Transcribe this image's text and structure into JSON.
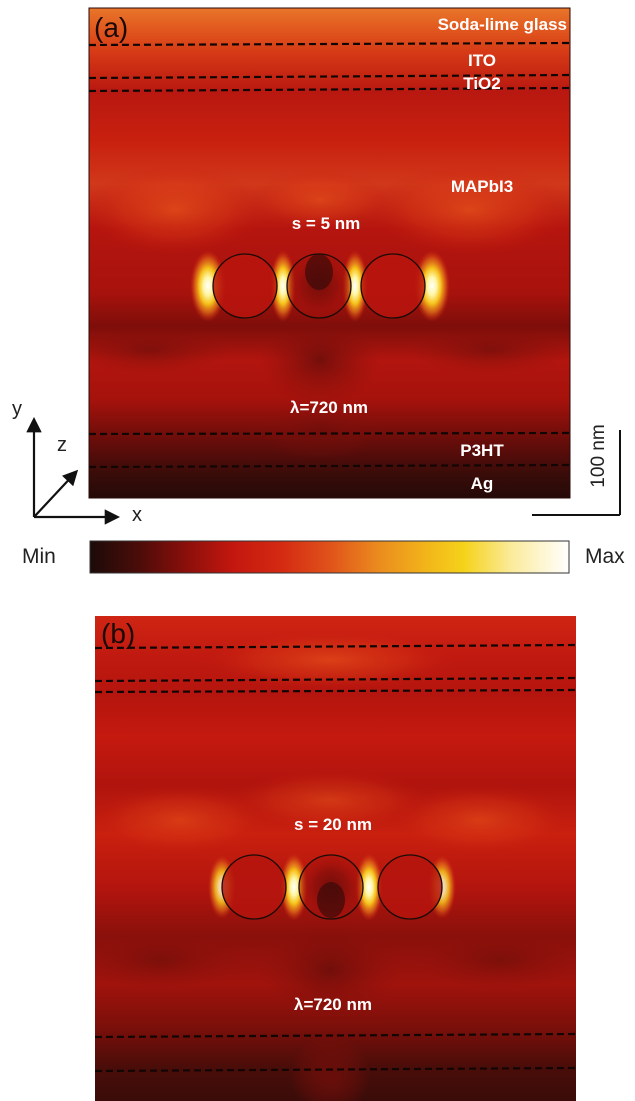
{
  "panel_a": {
    "tag": "(a)",
    "layers": {
      "glass": "Soda-lime glass",
      "ito": "ITO",
      "tio2": "TiO2",
      "absorber": "MAPbI3",
      "htl": "P3HT",
      "metal": "Ag"
    },
    "spacing": "s = 5 nm",
    "wavelength": "λ=720 nm"
  },
  "panel_b": {
    "tag": "(b)",
    "spacing": "s = 20 nm",
    "wavelength": "λ=720 nm"
  },
  "axes": {
    "y": "y",
    "z": "z",
    "x": "x"
  },
  "scale_bar": {
    "label": "100 nm"
  },
  "colorbar": {
    "min_label": "Min",
    "max_label": "Max"
  },
  "colors": {
    "field_base": "#c4170f",
    "field_dark": "#2a0a08",
    "hotspot": "#fff3a0",
    "glass_layer": "#e2671d"
  }
}
